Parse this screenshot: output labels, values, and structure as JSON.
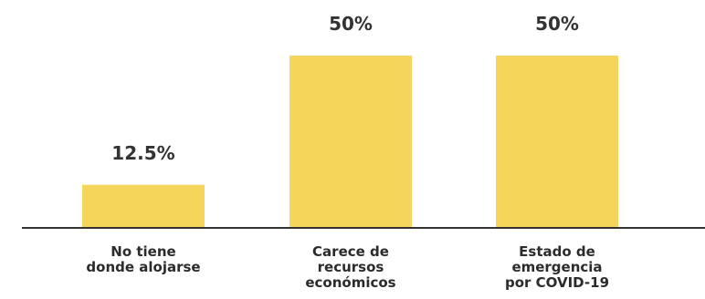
{
  "chart_data": {
    "type": "bar",
    "categories": [
      [
        "No tiene",
        "donde alojarse"
      ],
      [
        "Carece de",
        "recursos",
        "económicos"
      ],
      [
        "Estado de",
        "emergencia",
        "por COVID-19"
      ]
    ],
    "values": [
      12.5,
      50,
      50
    ],
    "value_labels": [
      "12.5%",
      "50%",
      "50%"
    ],
    "title": "",
    "xlabel": "",
    "ylabel": "",
    "ylim": [
      0,
      50
    ],
    "grid": false,
    "colors": {
      "bar": "#F6D65A",
      "axis": "#333333",
      "text": "#333333"
    }
  }
}
